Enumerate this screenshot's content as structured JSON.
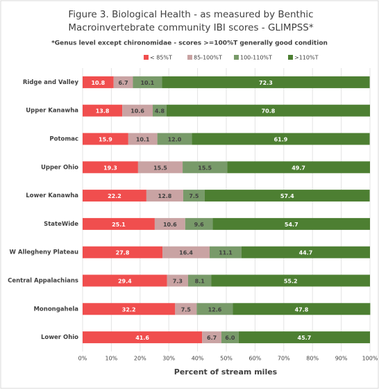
{
  "chart_data": {
    "type": "stacked-bar-horizontal",
    "title": "Figure 3. Biological Health - as measured by Benthic Macroinvertebrate community IBI scores - GLIMPSS*",
    "subtitle": "*Genus level except chironomidae - scores >=100%T generally good condition",
    "xlabel": "Percent of stream miles",
    "categories": [
      "Ridge and Valley",
      "Upper Kanawha",
      "Potomac",
      "Upper Ohio",
      "Lower Kanawha",
      "StateWide",
      "W Allegheny Plateau",
      "Central Appalachians",
      "Monongahela",
      "Lower Ohio"
    ],
    "series": [
      {
        "name": "< 85%T",
        "color": "#f04e4e",
        "values": [
          10.8,
          13.8,
          15.9,
          19.3,
          22.2,
          25.1,
          27.8,
          29.4,
          32.2,
          41.6
        ],
        "value_labels": [
          "10.8",
          "13.8",
          "15.9",
          "19.3",
          "22.2",
          "25.1",
          "27.8",
          "29.4",
          "32.2",
          "41.6"
        ]
      },
      {
        "name": "85-100%T",
        "color": "#c9a3a3",
        "values": [
          6.7,
          10.6,
          10.1,
          15.5,
          12.8,
          10.6,
          16.4,
          7.3,
          7.5,
          6.7
        ],
        "value_labels": [
          "6.7",
          "10.6",
          "10.1",
          "15.5",
          "12.8",
          "10.6",
          "16.4",
          "7.3",
          "7.5",
          "6.7"
        ]
      },
      {
        "name": "100-110%T",
        "color": "#789a69",
        "values": [
          10.1,
          4.8,
          12.0,
          15.5,
          7.5,
          9.6,
          11.1,
          8.1,
          12.6,
          6.0
        ],
        "value_labels": [
          "10.1",
          "4.8",
          "12.0",
          "15.5",
          "7.5",
          "9.6",
          "11.1",
          "8.1",
          "12.6",
          "6.0"
        ]
      },
      {
        "name": ">110%T",
        "color": "#4d7f32",
        "values": [
          72.3,
          70.8,
          61.9,
          49.7,
          57.4,
          54.7,
          44.7,
          55.2,
          47.8,
          45.7
        ],
        "value_labels": [
          "72.3",
          "70.8",
          "61.9",
          "49.7",
          "57.4",
          "54.7",
          "44.7",
          "55.2",
          "47.8",
          "45.7"
        ]
      }
    ],
    "xlim": [
      0,
      100
    ],
    "xticks": [
      {
        "value": 0,
        "label": "0%"
      },
      {
        "value": 10,
        "label": "10%"
      },
      {
        "value": 20,
        "label": "20%"
      },
      {
        "value": 30,
        "label": "30%"
      },
      {
        "value": 40,
        "label": "40%"
      },
      {
        "value": 50,
        "label": "50%"
      },
      {
        "value": 60,
        "label": "60%"
      },
      {
        "value": 70,
        "label": "70%"
      },
      {
        "value": 80,
        "label": "80%"
      },
      {
        "value": 90,
        "label": "90%"
      },
      {
        "value": 100,
        "label": "100%"
      }
    ],
    "grid": true,
    "legend": "top"
  }
}
